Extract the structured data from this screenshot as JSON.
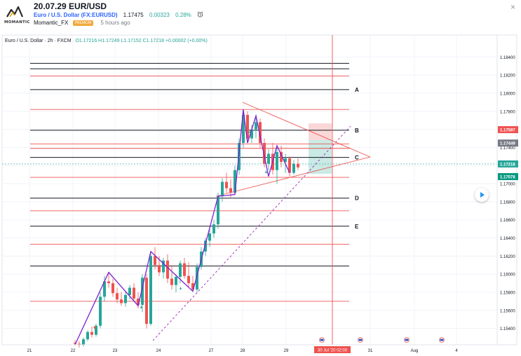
{
  "header": {
    "logo_text": "MOMANTIC",
    "title": "20.07.29 EUR/USD",
    "symbol_name": "Euro / U.S. Dollar (FX:EURUSD)",
    "last_price": "1.17475",
    "change": "0.00323",
    "change_pct": "0.28%",
    "author": "Momantic_FX",
    "badge": "PREMIUM",
    "time_ago": "5 hours ago",
    "close_glyph": "×"
  },
  "legend": {
    "instrument": "Euro / U.S. Dollar · 2h · FXCM",
    "ohlc": "O1.17216 H1.17249 L1.17152 C1.17218 +0.00002 (+0.00%)"
  },
  "chart_data": {
    "type": "candlestick",
    "price_axis_ticks": [
      "1.18400",
      "1.18200",
      "1.18000",
      "1.17800",
      "1.17600",
      "1.17400",
      "1.17200",
      "1.17000",
      "1.16800",
      "1.16600",
      "1.16400",
      "1.16200",
      "1.16000",
      "1.15800",
      "1.15600",
      "1.15400"
    ],
    "ylim": [
      1.1525,
      1.1855
    ],
    "time_axis_ticks": [
      "21",
      "22",
      "23",
      "24",
      "27",
      "28",
      "29",
      "30 Jul '20  02:00",
      "31",
      "Aug",
      "4"
    ],
    "price_labels": [
      {
        "text": "1.17597",
        "value": 1.17597,
        "color": "#ef5350"
      },
      {
        "text": "1.17449",
        "value": 1.17449,
        "color": "#787b86"
      },
      {
        "text": "1.17218",
        "value": 1.17218,
        "color": "#26a69a"
      },
      {
        "text": "1.17078",
        "value": 1.17078,
        "color": "#089981"
      }
    ],
    "level_labels": [
      {
        "text": "A",
        "value": 1.1804
      },
      {
        "text": "B",
        "value": 1.1759
      },
      {
        "text": "C",
        "value": 1.1729
      },
      {
        "text": "D",
        "value": 1.1684
      },
      {
        "text": "E",
        "value": 1.1653
      }
    ],
    "black_levels": [
      1.1833,
      1.1827,
      1.1804,
      1.1759,
      1.1729,
      1.1684,
      1.1653,
      1.1609
    ],
    "red_levels": [
      1.1819,
      1.1782,
      1.1744,
      1.1739,
      1.1707,
      1.167,
      1.1633,
      1.157
    ],
    "candles": [
      [
        0,
        1.1524,
        1.1527,
        1.1521,
        1.1523
      ],
      [
        1,
        1.1523,
        1.1526,
        1.1519,
        1.1522
      ],
      [
        2,
        1.1522,
        1.153,
        1.152,
        1.1528
      ],
      [
        3,
        1.1528,
        1.1538,
        1.1526,
        1.1536
      ],
      [
        4,
        1.1536,
        1.1542,
        1.153,
        1.1533
      ],
      [
        5,
        1.1533,
        1.1545,
        1.1531,
        1.1543
      ],
      [
        6,
        1.1543,
        1.158,
        1.154,
        1.1575
      ],
      [
        7,
        1.1575,
        1.1598,
        1.157,
        1.1592
      ],
      [
        8,
        1.1592,
        1.1602,
        1.1585,
        1.159
      ],
      [
        9,
        1.159,
        1.1595,
        1.1575,
        1.1579
      ],
      [
        10,
        1.1579,
        1.1585,
        1.1568,
        1.1572
      ],
      [
        11,
        1.1572,
        1.158,
        1.1565,
        1.1568
      ],
      [
        12,
        1.1568,
        1.158,
        1.1564,
        1.1577
      ],
      [
        13,
        1.1577,
        1.1588,
        1.1572,
        1.1585
      ],
      [
        14,
        1.1585,
        1.159,
        1.157,
        1.1573
      ],
      [
        15,
        1.1573,
        1.158,
        1.1562,
        1.1566
      ],
      [
        16,
        1.1566,
        1.16,
        1.1558,
        1.1596
      ],
      [
        17,
        1.1596,
        1.16,
        1.154,
        1.1545
      ],
      [
        18,
        1.1545,
        1.1625,
        1.1543,
        1.162
      ],
      [
        19,
        1.162,
        1.163,
        1.1605,
        1.161
      ],
      [
        20,
        1.161,
        1.162,
        1.1598,
        1.1602
      ],
      [
        21,
        1.1602,
        1.1618,
        1.1595,
        1.1615
      ],
      [
        22,
        1.1615,
        1.1622,
        1.159,
        1.1595
      ],
      [
        23,
        1.1595,
        1.161,
        1.1583,
        1.1588
      ],
      [
        24,
        1.1588,
        1.16,
        1.158,
        1.1597
      ],
      [
        25,
        1.1597,
        1.1615,
        1.159,
        1.1612
      ],
      [
        26,
        1.1612,
        1.1618,
        1.1595,
        1.1598
      ],
      [
        27,
        1.1598,
        1.1613,
        1.1585,
        1.159
      ],
      [
        28,
        1.159,
        1.1598,
        1.1581,
        1.1583
      ],
      [
        29,
        1.1583,
        1.1612,
        1.158,
        1.1608
      ],
      [
        30,
        1.1608,
        1.163,
        1.1605,
        1.1625
      ],
      [
        31,
        1.1625,
        1.164,
        1.162,
        1.1637
      ],
      [
        32,
        1.1637,
        1.165,
        1.163,
        1.1645
      ],
      [
        33,
        1.1645,
        1.166,
        1.164,
        1.1655
      ],
      [
        34,
        1.1655,
        1.169,
        1.165,
        1.1686
      ],
      [
        35,
        1.1686,
        1.1706,
        1.168,
        1.1702
      ],
      [
        36,
        1.1702,
        1.1712,
        1.169,
        1.1695
      ],
      [
        37,
        1.1695,
        1.1705,
        1.1685,
        1.169
      ],
      [
        38,
        1.169,
        1.172,
        1.1688,
        1.1715
      ],
      [
        39,
        1.1715,
        1.175,
        1.171,
        1.1745
      ],
      [
        40,
        1.1745,
        1.1782,
        1.174,
        1.1776
      ],
      [
        41,
        1.1776,
        1.178,
        1.1745,
        1.175
      ],
      [
        42,
        1.175,
        1.1765,
        1.1745,
        1.176
      ],
      [
        43,
        1.176,
        1.1775,
        1.175,
        1.1768
      ],
      [
        44,
        1.1768,
        1.1772,
        1.174,
        1.1745
      ],
      [
        45,
        1.1745,
        1.175,
        1.1718,
        1.1722
      ],
      [
        46,
        1.1722,
        1.1738,
        1.1715,
        1.1733
      ],
      [
        47,
        1.1733,
        1.1745,
        1.171,
        1.1715
      ],
      [
        48,
        1.1715,
        1.174,
        1.17,
        1.1735
      ],
      [
        49,
        1.1735,
        1.1742,
        1.1718,
        1.1724
      ],
      [
        50,
        1.1724,
        1.1733,
        1.1712,
        1.1728
      ],
      [
        51,
        1.1728,
        1.173,
        1.1708,
        1.1712
      ],
      [
        52,
        1.1712,
        1.1726,
        1.171,
        1.1722
      ],
      [
        53,
        1.1722,
        1.1728,
        1.1715,
        1.1718
      ]
    ],
    "zigzag": [
      [
        1.1522,
        0
      ],
      [
        1.1602,
        8
      ],
      [
        1.1565,
        15
      ],
      [
        1.1625,
        18
      ],
      [
        1.1581,
        28
      ],
      [
        1.1686,
        34
      ],
      [
        1.1688,
        38
      ],
      [
        1.1782,
        40
      ],
      [
        1.1745,
        41
      ],
      [
        1.1775,
        43
      ],
      [
        1.1708,
        46
      ],
      [
        1.1742,
        48
      ],
      [
        1.1712,
        51
      ]
    ]
  }
}
